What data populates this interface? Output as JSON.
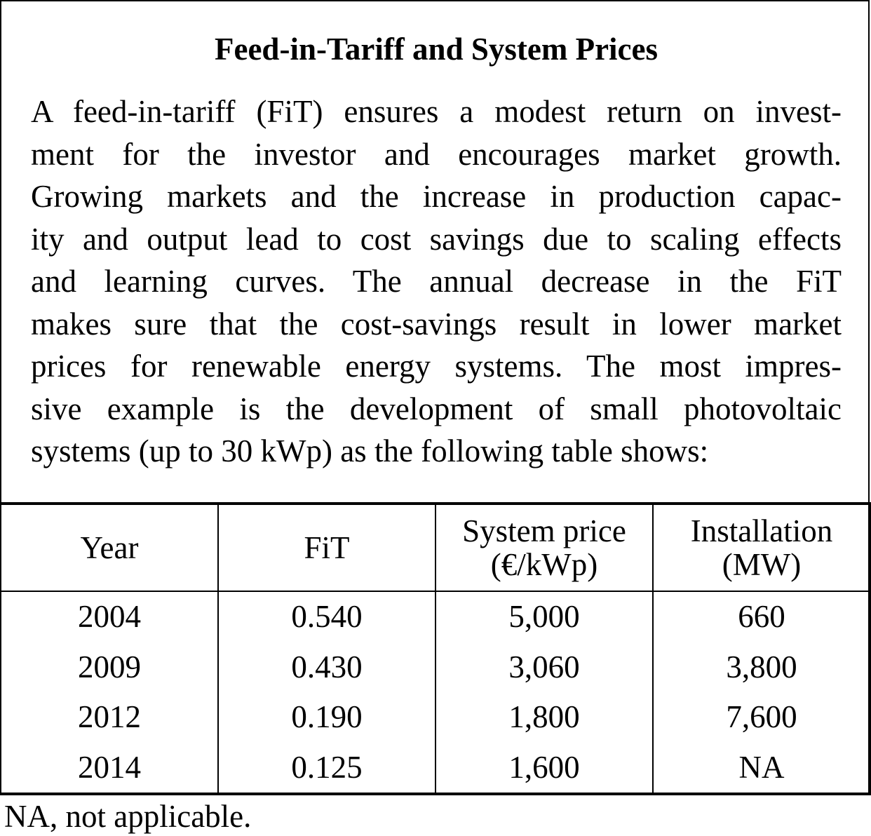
{
  "box": {
    "title": "Feed-in-Tariff and System Prices",
    "lines": [
      "A feed-in-tariff (FiT) ensures a modest return on invest-",
      "ment for the investor and encourages market growth.",
      "Growing markets and the increase in production capac-",
      "ity and output lead to cost savings due to scaling effects",
      "and learning curves. The annual decrease in the FiT",
      "makes sure that the cost-savings result in lower market",
      "prices for renewable energy systems. The most impres-",
      "sive example is the development of small photovoltaic",
      "systems (up to 30 kWp) as the following table shows:"
    ]
  },
  "table": {
    "headers": [
      {
        "line1": "Year",
        "line2": ""
      },
      {
        "line1": "FiT",
        "line2": ""
      },
      {
        "line1": "System price",
        "line2": "(€/kWp)"
      },
      {
        "line1": "Installation",
        "line2": "(MW)"
      }
    ],
    "rows": [
      [
        "2004",
        "0.540",
        "5,000",
        "660"
      ],
      [
        "2009",
        "0.430",
        "3,060",
        "3,800"
      ],
      [
        "2012",
        "0.190",
        "1,800",
        "7,600"
      ],
      [
        "2014",
        "0.125",
        "1,600",
        "NA"
      ]
    ]
  },
  "footnote": "NA, not applicable."
}
